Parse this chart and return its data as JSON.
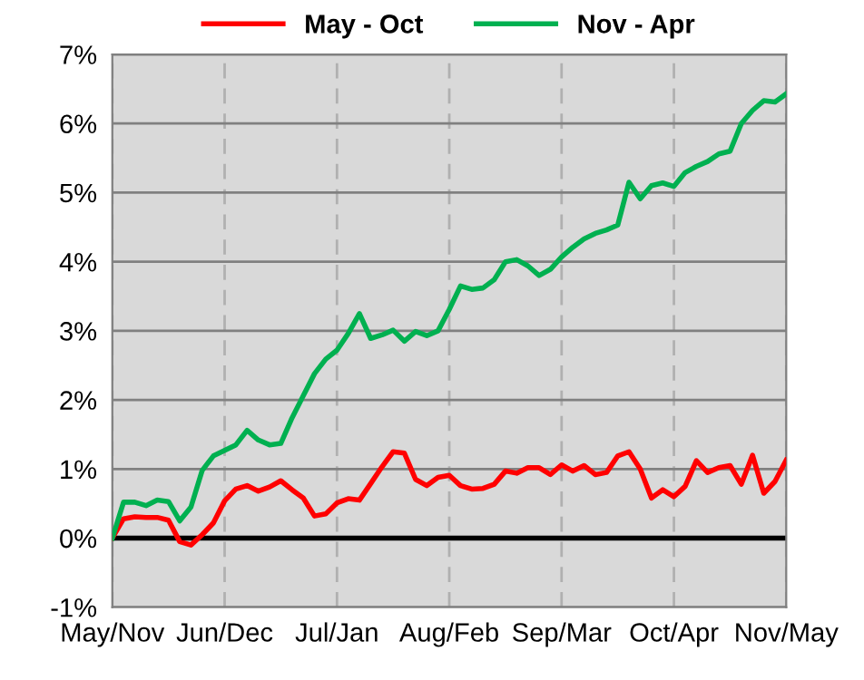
{
  "chart_data": {
    "type": "line",
    "ylim": [
      -1,
      7
    ],
    "categories": [
      "May/Nov",
      null,
      null,
      null,
      null,
      null,
      null,
      null,
      null,
      null,
      "Jun/Dec",
      null,
      null,
      null,
      null,
      null,
      null,
      null,
      null,
      null,
      "Jul/Jan",
      null,
      null,
      null,
      null,
      null,
      null,
      null,
      null,
      null,
      "Aug/Feb",
      null,
      null,
      null,
      null,
      null,
      null,
      null,
      null,
      null,
      "Sep/Mar",
      null,
      null,
      null,
      null,
      null,
      null,
      null,
      null,
      null,
      "Oct/Apr",
      null,
      null,
      null,
      null,
      null,
      null,
      null,
      null,
      null,
      "Nov/May"
    ],
    "yticks": [
      {
        "value": -1,
        "label": "-1%"
      },
      {
        "value": 0,
        "label": "0%"
      },
      {
        "value": 1,
        "label": "1%"
      },
      {
        "value": 2,
        "label": "2%"
      },
      {
        "value": 3,
        "label": "3%"
      },
      {
        "value": 4,
        "label": "4%"
      },
      {
        "value": 5,
        "label": "5%"
      },
      {
        "value": 6,
        "label": "6%"
      },
      {
        "value": 7,
        "label": "7%"
      }
    ],
    "grid": true,
    "legend": "top",
    "marker": "none",
    "line_style": "solid",
    "ref_lines": [
      {
        "axis": "y",
        "value": 0,
        "color": "#000000"
      }
    ],
    "series": [
      {
        "name": "May - Oct",
        "color": "#ff0000",
        "values": [
          0,
          0.28,
          0.31,
          0.3,
          0.3,
          0.26,
          -0.05,
          -0.1,
          0.05,
          0.22,
          0.54,
          0.71,
          0.76,
          0.68,
          0.74,
          0.83,
          0.7,
          0.58,
          0.32,
          0.35,
          0.51,
          0.57,
          0.55,
          0.79,
          1.03,
          1.25,
          1.23,
          0.85,
          0.76,
          0.88,
          0.91,
          0.76,
          0.71,
          0.72,
          0.78,
          0.97,
          0.94,
          1.02,
          1.02,
          0.92,
          1.06,
          0.97,
          1.05,
          0.92,
          0.95,
          1.19,
          1.25,
          1.0,
          0.58,
          0.7,
          0.6,
          0.75,
          1.12,
          0.95,
          1.02,
          1.05,
          0.78,
          1.2,
          0.65,
          0.82,
          1.13
        ]
      },
      {
        "name": "Nov - Apr",
        "color": "#00b050",
        "values": [
          0,
          0.52,
          0.52,
          0.47,
          0.55,
          0.53,
          0.25,
          0.45,
          0.98,
          1.19,
          1.27,
          1.35,
          1.56,
          1.42,
          1.35,
          1.37,
          1.74,
          2.06,
          2.38,
          2.59,
          2.72,
          2.96,
          3.25,
          2.89,
          2.94,
          3.01,
          2.85,
          2.99,
          2.93,
          3.0,
          3.31,
          3.65,
          3.6,
          3.62,
          3.74,
          4.0,
          4.03,
          3.94,
          3.8,
          3.89,
          4.07,
          4.21,
          4.33,
          4.41,
          4.46,
          4.53,
          5.15,
          4.91,
          5.1,
          5.14,
          5.09,
          5.29,
          5.38,
          5.45,
          5.56,
          5.6,
          6.0,
          6.19,
          6.33,
          6.31,
          6.43
        ]
      }
    ]
  }
}
